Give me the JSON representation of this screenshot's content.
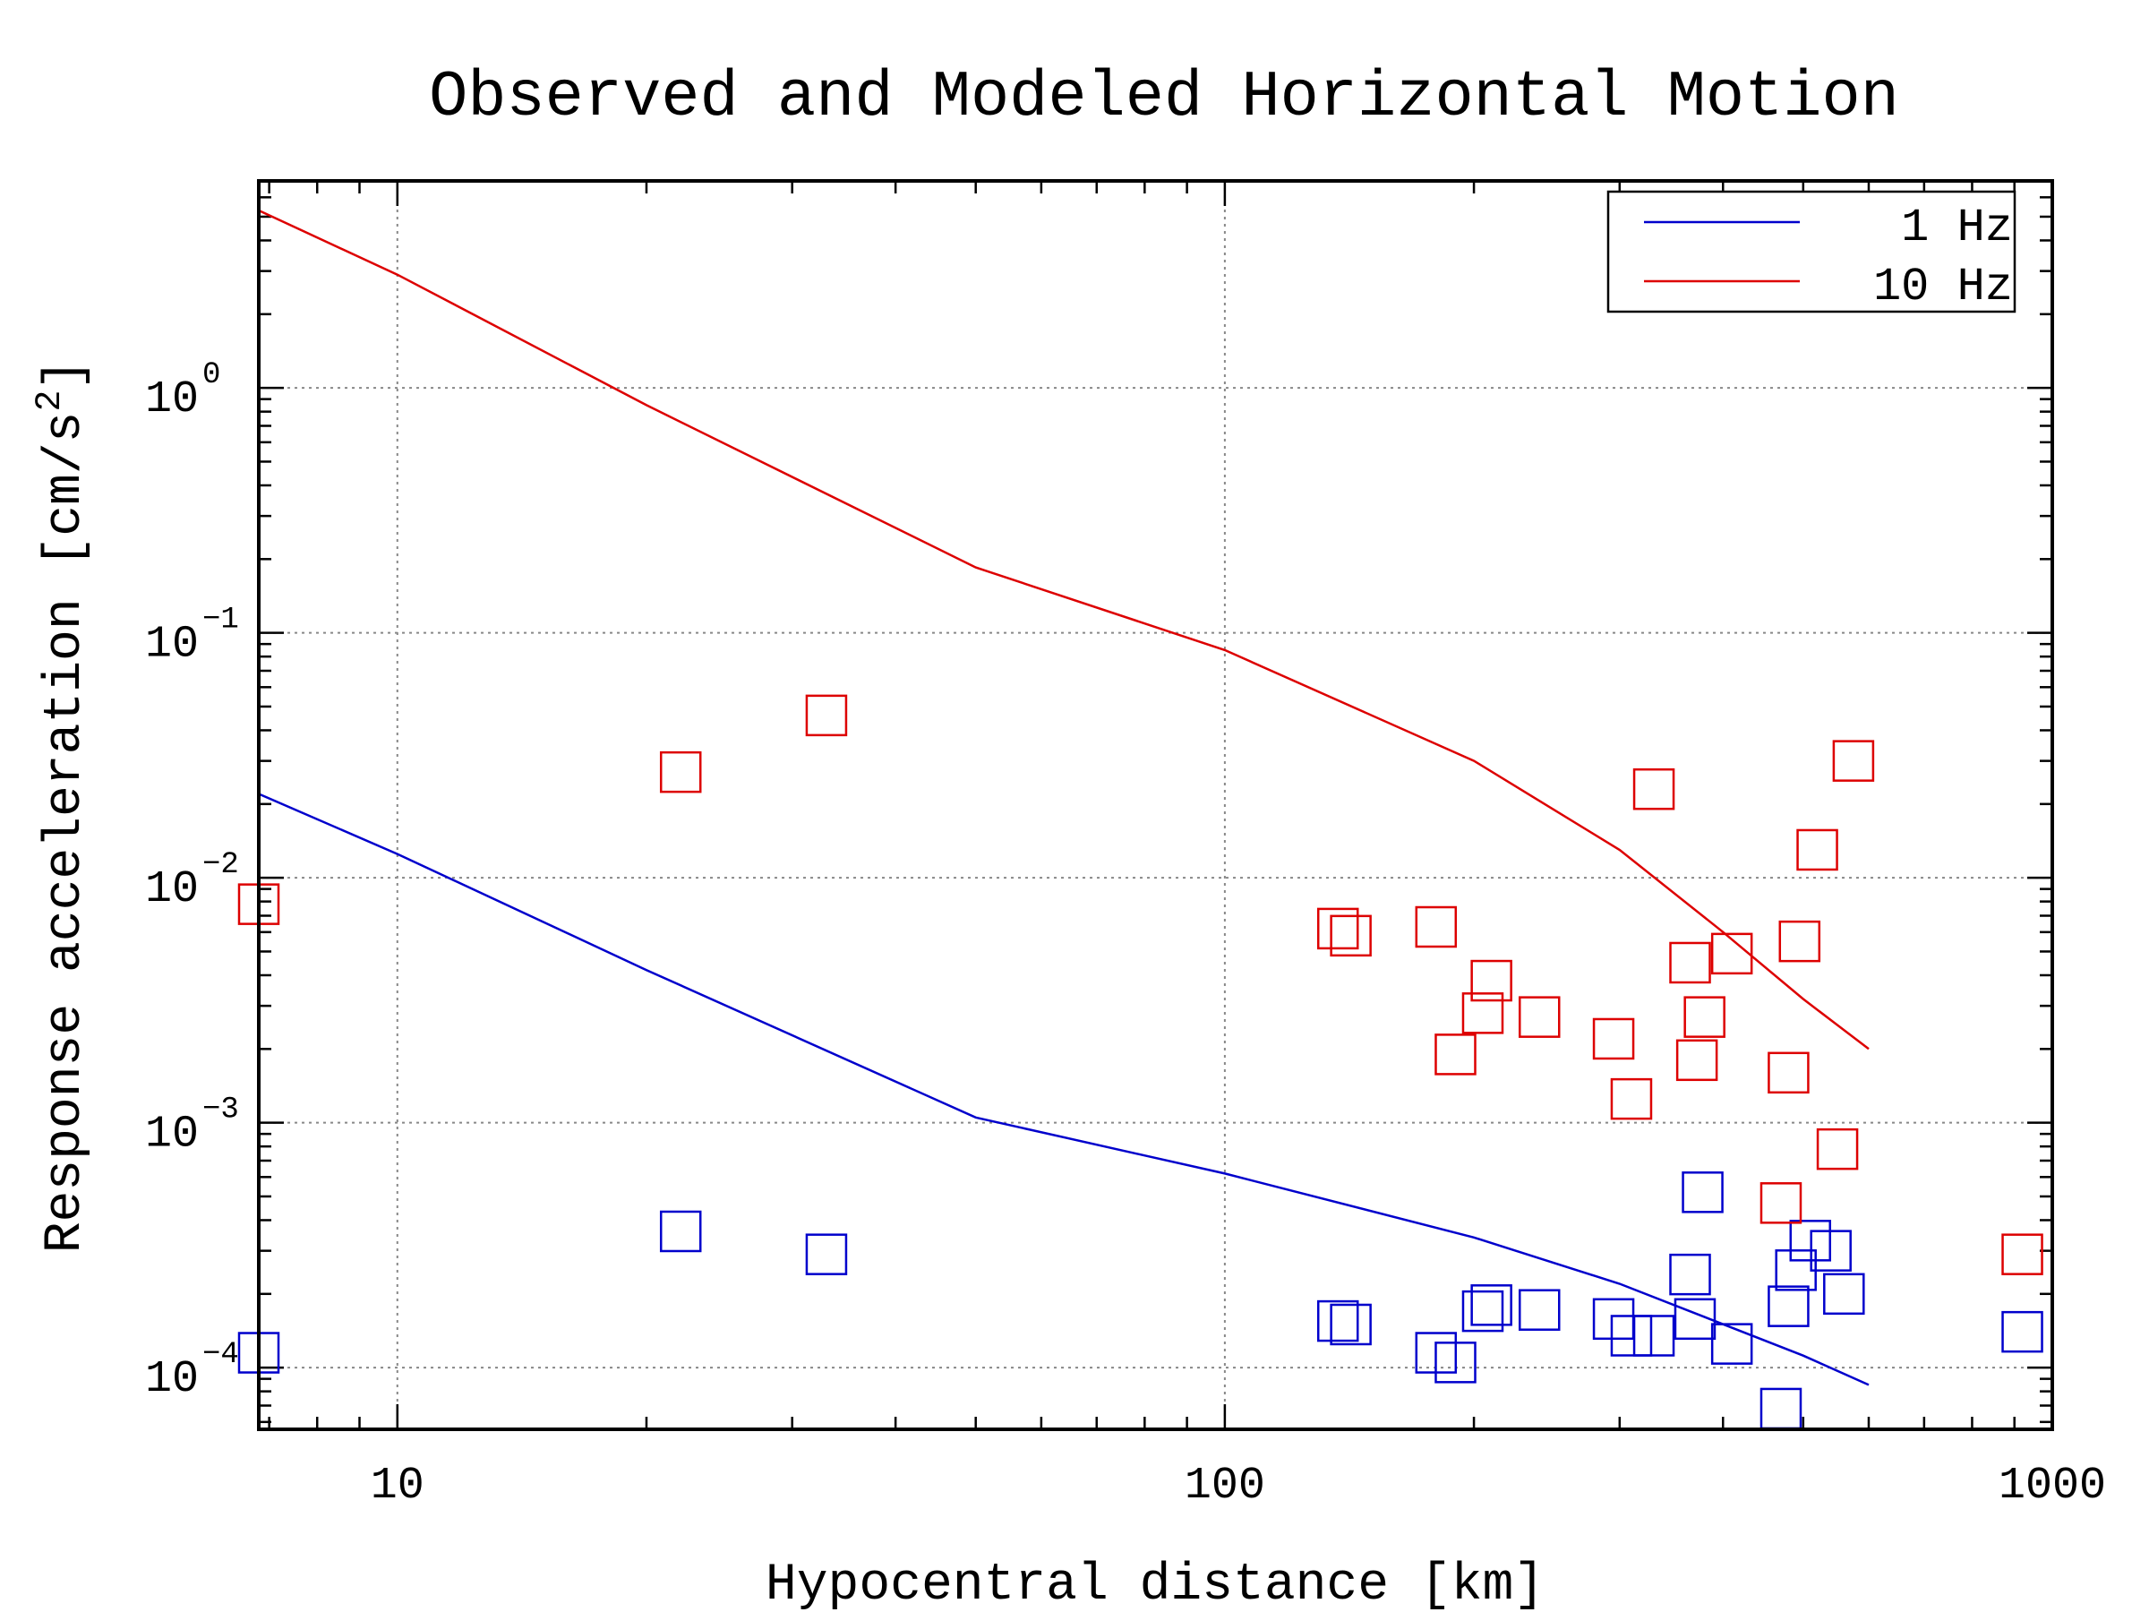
{
  "chart_data": {
    "type": "scatter",
    "title": "Observed and Modeled Horizontal Motion",
    "xlabel": "Hypocentral distance [km]",
    "ylabel": "Response acceleration [cm/s²]",
    "ylabel_parts": [
      "Response acceleration [cm/s",
      "2",
      "]"
    ],
    "xscale": "log",
    "yscale": "log",
    "xlim": [
      6.8,
      1000
    ],
    "ylim": [
      5.6e-05,
      7
    ],
    "grid": true,
    "legend_position": "top-right",
    "x_ticks": [
      {
        "value": 10,
        "label": "10"
      },
      {
        "value": 100,
        "label": "100"
      },
      {
        "value": 1000,
        "label": "1000"
      }
    ],
    "y_ticks": [
      {
        "value": 1,
        "base": "10",
        "exp": "0"
      },
      {
        "value": 0.1,
        "base": "10",
        "exp": "−1"
      },
      {
        "value": 0.01,
        "base": "10",
        "exp": "−2"
      },
      {
        "value": 0.001,
        "base": "10",
        "exp": "−3"
      },
      {
        "value": 0.0001,
        "base": "10",
        "exp": "−4"
      }
    ],
    "colors": {
      "1 Hz": "#0000cc",
      "10 Hz": "#dd0000",
      "axis": "#000000",
      "grid": "#888888"
    },
    "series": [
      {
        "name": "1 Hz",
        "color": "#0000cc",
        "model_line": {
          "x": [
            6.8,
            10,
            20,
            50,
            100,
            200,
            300,
            500,
            600
          ],
          "y": [
            0.022,
            0.0125,
            0.0042,
            0.00105,
            0.00062,
            0.00034,
            0.00022,
            0.000112,
            8.5e-05
          ]
        },
        "observed": [
          {
            "x": 6.8,
            "y": 0.000115
          },
          {
            "x": 22,
            "y": 0.00036
          },
          {
            "x": 33,
            "y": 0.00029
          },
          {
            "x": 137,
            "y": 0.000155
          },
          {
            "x": 142,
            "y": 0.00015
          },
          {
            "x": 180,
            "y": 0.000115
          },
          {
            "x": 190,
            "y": 0.000105
          },
          {
            "x": 205,
            "y": 0.00017
          },
          {
            "x": 210,
            "y": 0.00018
          },
          {
            "x": 240,
            "y": 0.000172
          },
          {
            "x": 295,
            "y": 0.000158
          },
          {
            "x": 310,
            "y": 0.000135
          },
          {
            "x": 330,
            "y": 0.000135
          },
          {
            "x": 365,
            "y": 0.00024
          },
          {
            "x": 370,
            "y": 0.000158
          },
          {
            "x": 378,
            "y": 0.00052
          },
          {
            "x": 410,
            "y": 0.000125
          },
          {
            "x": 470,
            "y": 6.8e-05
          },
          {
            "x": 480,
            "y": 0.000178
          },
          {
            "x": 490,
            "y": 0.00025
          },
          {
            "x": 510,
            "y": 0.00033
          },
          {
            "x": 540,
            "y": 0.0003
          },
          {
            "x": 560,
            "y": 0.0002
          },
          {
            "x": 920,
            "y": 0.00014
          }
        ]
      },
      {
        "name": "10 Hz",
        "color": "#dd0000",
        "model_line": {
          "x": [
            6.8,
            10,
            20,
            50,
            100,
            200,
            300,
            400,
            500,
            600
          ],
          "y": [
            5.3,
            2.9,
            0.85,
            0.185,
            0.085,
            0.03,
            0.013,
            0.006,
            0.0032,
            0.002
          ]
        },
        "observed": [
          {
            "x": 6.8,
            "y": 0.0078
          },
          {
            "x": 22,
            "y": 0.027
          },
          {
            "x": 33,
            "y": 0.046
          },
          {
            "x": 137,
            "y": 0.0062
          },
          {
            "x": 142,
            "y": 0.0058
          },
          {
            "x": 180,
            "y": 0.0063
          },
          {
            "x": 190,
            "y": 0.0019
          },
          {
            "x": 205,
            "y": 0.0028
          },
          {
            "x": 210,
            "y": 0.0038
          },
          {
            "x": 240,
            "y": 0.0027
          },
          {
            "x": 295,
            "y": 0.0022
          },
          {
            "x": 310,
            "y": 0.00125
          },
          {
            "x": 330,
            "y": 0.023
          },
          {
            "x": 365,
            "y": 0.0045
          },
          {
            "x": 372,
            "y": 0.0018
          },
          {
            "x": 380,
            "y": 0.0027
          },
          {
            "x": 410,
            "y": 0.0049
          },
          {
            "x": 470,
            "y": 0.00047
          },
          {
            "x": 480,
            "y": 0.0016
          },
          {
            "x": 495,
            "y": 0.0055
          },
          {
            "x": 520,
            "y": 0.013
          },
          {
            "x": 550,
            "y": 0.00078
          },
          {
            "x": 575,
            "y": 0.03
          },
          {
            "x": 920,
            "y": 0.00029
          }
        ]
      }
    ]
  }
}
